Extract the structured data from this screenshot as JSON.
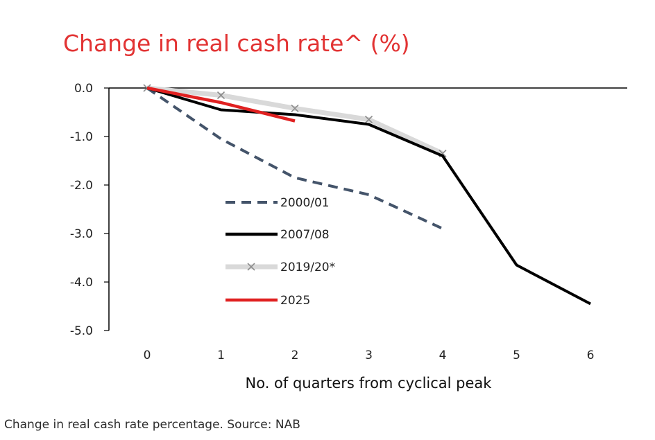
{
  "caption": "Change in real cash rate percentage. Source: NAB",
  "chart_data": {
    "type": "line",
    "title": "Change in real cash rate^ (%)",
    "xlabel": "No. of quarters from cyclical peak",
    "ylabel": "",
    "x": [
      0,
      1,
      2,
      3,
      4,
      5,
      6
    ],
    "xlim": [
      0,
      6
    ],
    "ylim": [
      -5.0,
      0.0
    ],
    "yticks": [
      "0.0",
      "-1.0",
      "-2.0",
      "-3.0",
      "-4.0",
      "-5.0"
    ],
    "xticks": [
      "0",
      "1",
      "2",
      "3",
      "4",
      "5",
      "6"
    ],
    "grid": false,
    "legend_position": "center-left",
    "series": [
      {
        "name": "2000/01",
        "x": [
          0,
          1,
          2,
          3,
          4
        ],
        "values": [
          0.0,
          -1.05,
          -1.85,
          -2.2,
          -2.9
        ],
        "color": "#44546a",
        "style": "dashed"
      },
      {
        "name": "2007/08",
        "x": [
          0,
          1,
          2,
          3,
          4,
          5,
          6
        ],
        "values": [
          0.0,
          -0.45,
          -0.55,
          -0.75,
          -1.4,
          -3.65,
          -4.45
        ],
        "color": "#000000",
        "style": "solid"
      },
      {
        "name": "2019/20*",
        "x": [
          0,
          1,
          2,
          3,
          4
        ],
        "values": [
          0.0,
          -0.15,
          -0.42,
          -0.65,
          -1.35
        ],
        "color": "#d9d9d9",
        "style": "marker-x",
        "marker_color": "#8c8c8c"
      },
      {
        "name": "2025",
        "x": [
          0,
          1,
          2
        ],
        "values": [
          0.0,
          -0.3,
          -0.68
        ],
        "color": "#e02020",
        "style": "solid"
      }
    ]
  }
}
